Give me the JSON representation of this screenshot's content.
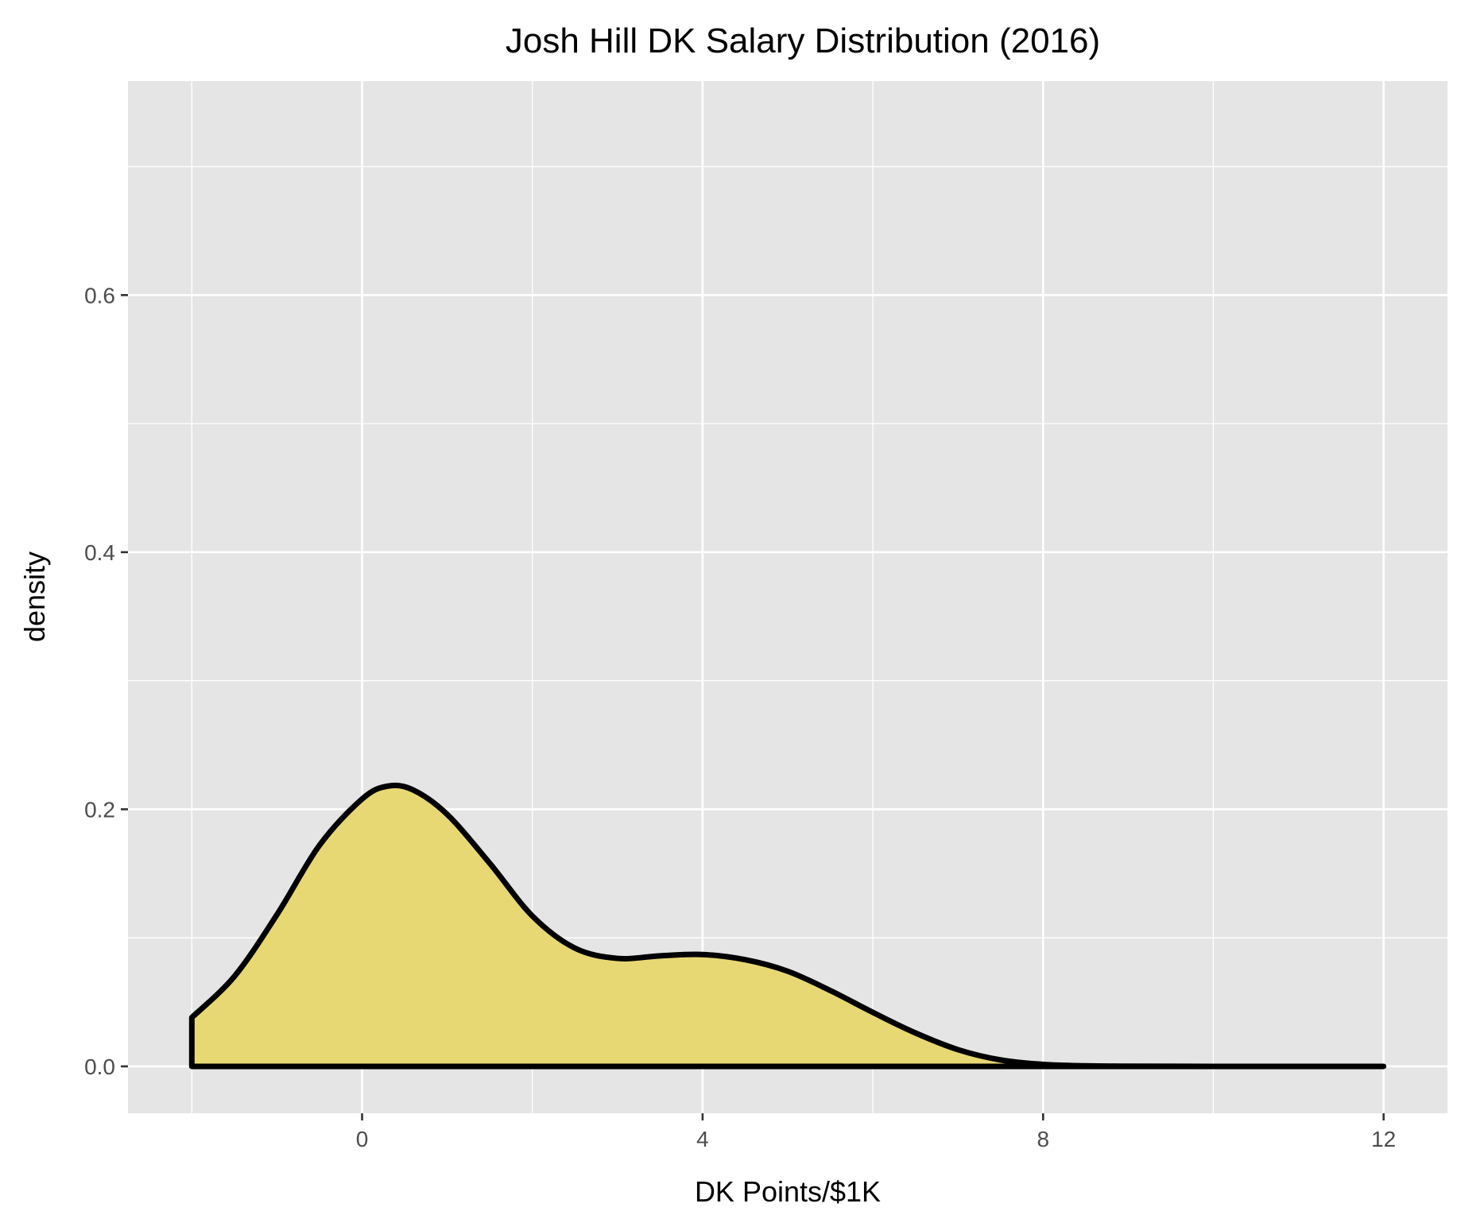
{
  "chart_data": {
    "type": "area",
    "title": "Josh Hill DK Salary Distribution (2016)",
    "xlabel": "DK Points/$1K",
    "ylabel": "density",
    "xlim": [
      -2.75,
      12.75
    ],
    "ylim": [
      -0.0365,
      0.7665
    ],
    "x_ticks": [
      0,
      4,
      8,
      12
    ],
    "x_tick_labels": [
      "0",
      "4",
      "8",
      "12"
    ],
    "x_minor_ticks": [
      -2,
      2,
      6,
      10
    ],
    "y_ticks": [
      0.0,
      0.2,
      0.4,
      0.6
    ],
    "y_tick_labels": [
      "0.0",
      "0.2",
      "0.4",
      "0.6"
    ],
    "y_minor_ticks": [
      0.1,
      0.3,
      0.5,
      0.7
    ],
    "grid": true,
    "fill_color": "#e8d873",
    "line_color": "#000000",
    "panel_color": "#e5e5e5",
    "series": [
      {
        "x": [
          -2.0,
          -1.5,
          -1.0,
          -0.5,
          0.0,
          0.3,
          0.6,
          1.0,
          1.5,
          2.0,
          2.5,
          3.0,
          3.5,
          4.0,
          4.5,
          5.0,
          5.5,
          6.0,
          6.5,
          7.0,
          7.5,
          8.0,
          8.5,
          9.0,
          10.0,
          11.0,
          12.0
        ],
        "y": [
          0.038,
          0.07,
          0.118,
          0.172,
          0.208,
          0.218,
          0.215,
          0.196,
          0.158,
          0.117,
          0.092,
          0.084,
          0.086,
          0.087,
          0.083,
          0.074,
          0.059,
          0.042,
          0.026,
          0.013,
          0.005,
          0.0015,
          0.0004,
          0.0001,
          0.0,
          0.0,
          0.0
        ]
      }
    ]
  }
}
